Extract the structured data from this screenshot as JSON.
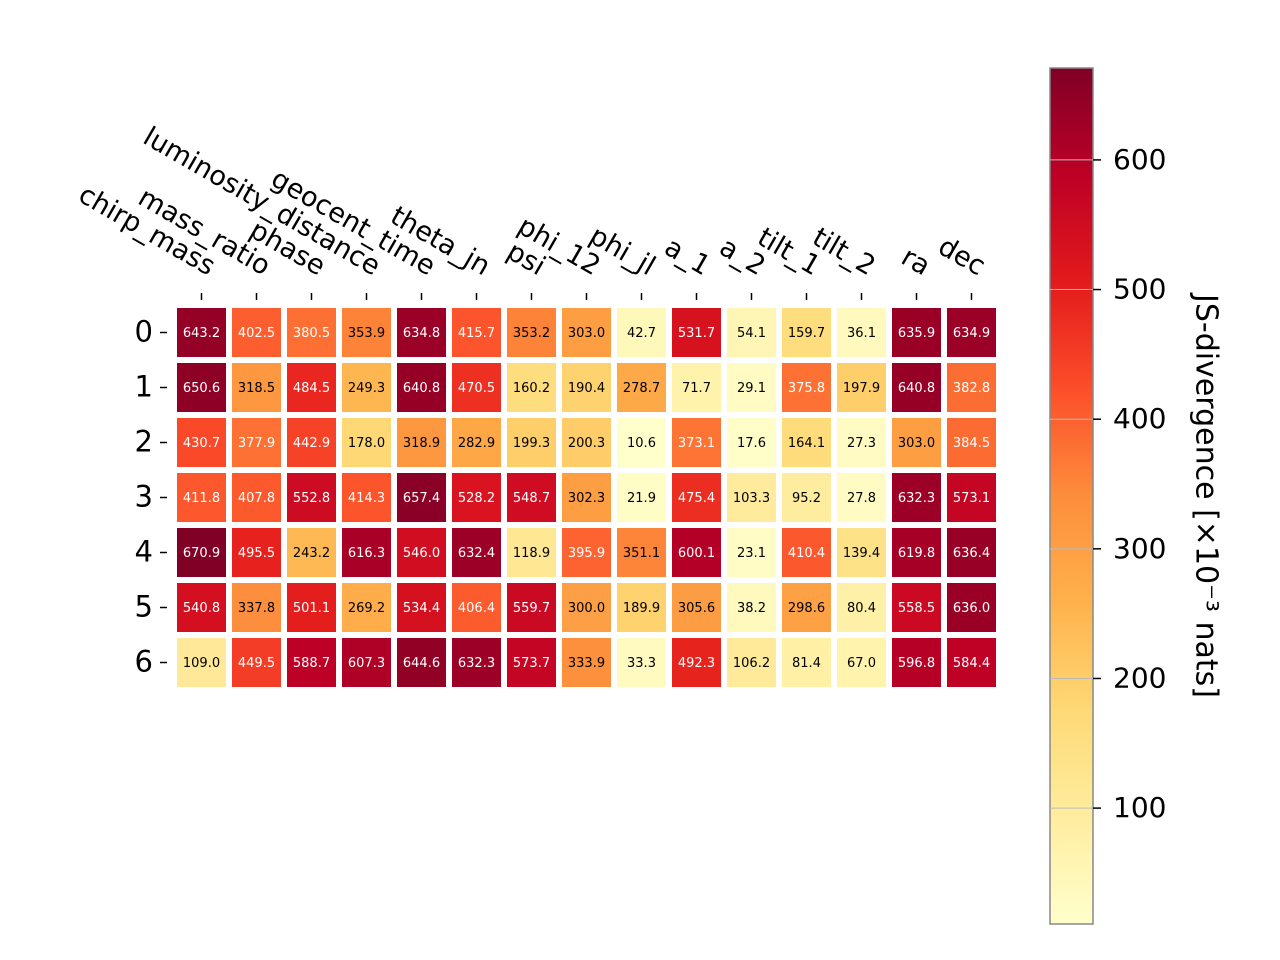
{
  "chart_data": {
    "type": "heatmap",
    "columns": [
      "chirp_mass",
      "mass_ratio",
      "phase",
      "luminosity_distance",
      "geocent_time",
      "theta_jn",
      "psi",
      "phi_12",
      "phi_jl",
      "a_1",
      "a_2",
      "tilt_1",
      "tilt_2",
      "ra",
      "dec"
    ],
    "rows": [
      "0",
      "1",
      "2",
      "3",
      "4",
      "5",
      "6"
    ],
    "values": [
      [
        643.2,
        402.5,
        380.5,
        353.9,
        634.8,
        415.7,
        353.2,
        303.0,
        42.7,
        531.7,
        54.1,
        159.7,
        36.1,
        635.9,
        634.9
      ],
      [
        650.6,
        318.5,
        484.5,
        249.3,
        640.8,
        470.5,
        160.2,
        190.4,
        278.7,
        71.7,
        29.1,
        375.8,
        197.9,
        640.8,
        382.8
      ],
      [
        430.7,
        377.9,
        442.9,
        178.0,
        318.9,
        282.9,
        199.3,
        200.3,
        10.6,
        373.1,
        17.6,
        164.1,
        27.3,
        303.0,
        384.5
      ],
      [
        411.8,
        407.8,
        552.8,
        414.3,
        657.4,
        528.2,
        548.7,
        302.3,
        21.9,
        475.4,
        103.3,
        95.2,
        27.8,
        632.3,
        573.1
      ],
      [
        670.9,
        495.5,
        243.2,
        616.3,
        546.0,
        632.4,
        118.9,
        395.9,
        351.1,
        600.1,
        23.1,
        410.4,
        139.4,
        619.8,
        636.4
      ],
      [
        540.8,
        337.8,
        501.1,
        269.2,
        534.4,
        406.4,
        559.7,
        300.0,
        189.9,
        305.6,
        38.2,
        298.6,
        80.4,
        558.5,
        636.0
      ],
      [
        109.0,
        449.5,
        588.7,
        607.3,
        644.6,
        632.3,
        573.7,
        333.9,
        33.3,
        492.3,
        106.2,
        81.4,
        67.0,
        596.8,
        584.4
      ]
    ],
    "colorbar": {
      "label": "JS-divergence [×10⁻³ nats]",
      "range": [
        10.6,
        670.9
      ],
      "ticks": [
        100,
        200,
        300,
        400,
        500,
        600
      ],
      "colormap": "YlOrRd"
    },
    "colormap_stops": [
      "#ffffcc",
      "#ffeda0",
      "#fed976",
      "#feb24c",
      "#fd8d3c",
      "#fc4e2a",
      "#e31a1c",
      "#bd0026",
      "#800026"
    ]
  }
}
